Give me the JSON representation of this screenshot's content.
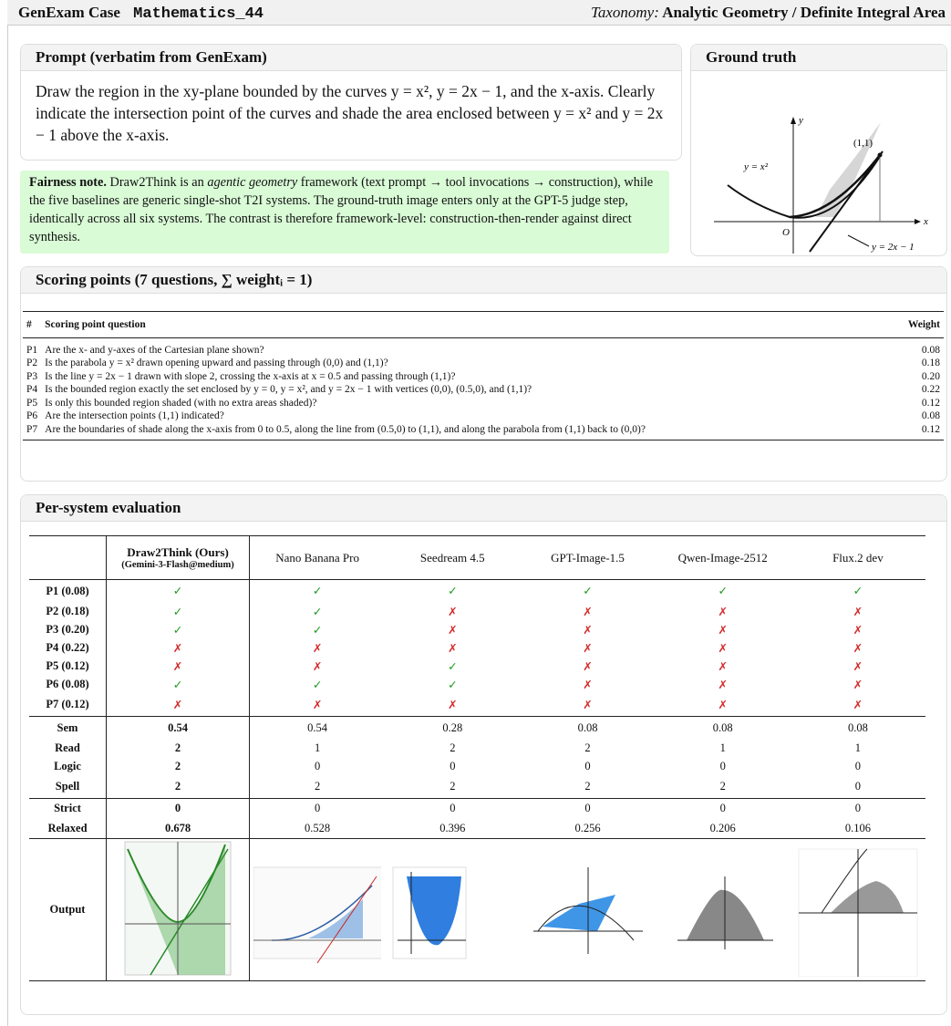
{
  "header": {
    "case_label": "GenExam Case",
    "case_id": "Mathematics_44",
    "taxonomy_label": "Taxonomy:",
    "taxonomy": "Analytic Geometry / Definite Integral Area"
  },
  "prompt": {
    "title": "Prompt (verbatim from GenExam)",
    "text": "Draw the region in the xy-plane bounded by the curves y = x², y = 2x − 1, and the x-axis. Clearly indicate the intersection point of the curves and shade the area enclosed between y = x² and y = 2x − 1 above the x-axis."
  },
  "fairness": {
    "label": "Fairness note.",
    "text_before": " Draw2Think is an ",
    "emphasis": "agentic geometry",
    "text_after": " framework (text prompt → tool invocations → construction), while the five baselines are generic single-shot T2I systems. The ground-truth image enters only at the GPT-5 judge step, identically across all six systems. The contrast is therefore framework-level: construction-then-render against direct synthesis."
  },
  "ground_truth": {
    "title": "Ground truth",
    "labels": {
      "y_axis": "y",
      "x_axis": "x",
      "origin": "O",
      "point": "(1,1)",
      "parabola": "y = x²",
      "line": "y = 2x − 1"
    }
  },
  "scoring": {
    "title": "Scoring points (7 questions, ∑ weightᵢ = 1)",
    "columns": [
      "#",
      "Scoring point question",
      "Weight"
    ],
    "rows": [
      [
        "P1",
        "Are the x- and y-axes of the Cartesian plane shown?",
        "0.08"
      ],
      [
        "P2",
        "Is the parabola y = x² drawn opening upward and passing through (0,0) and (1,1)?",
        "0.18"
      ],
      [
        "P3",
        "Is the line y = 2x − 1 drawn with slope 2, crossing the x-axis at x = 0.5 and passing through (1,1)?",
        "0.20"
      ],
      [
        "P4",
        "Is the bounded region exactly the set enclosed by y = 0, y = x², and y = 2x − 1 with vertices (0,0), (0.5,0), and (1,1)?",
        "0.22"
      ],
      [
        "P5",
        "Is only this bounded region shaded (with no extra areas shaded)?",
        "0.12"
      ],
      [
        "P6",
        "Are the intersection points (1,1) indicated?",
        "0.08"
      ],
      [
        "P7",
        "Are the boundaries of shade along the x-axis from 0 to 0.5, along the line from (0.5,0) to (1,1), and along the parabola from (1,1) back to (0,0)?",
        "0.12"
      ]
    ]
  },
  "evaluation": {
    "title": "Per-system evaluation",
    "systems": [
      {
        "name": "Draw2Think (Ours)",
        "note": "(Gemini-3-Flash@medium)"
      },
      {
        "name": "Nano Banana Pro"
      },
      {
        "name": "Seedream 4.5"
      },
      {
        "name": "GPT-Image-1.5"
      },
      {
        "name": "Qwen-Image-2512"
      },
      {
        "name": "Flux.2 dev"
      }
    ],
    "mark_colors": {
      "✓": "#1f9a1f",
      "✗": "#d42a2a"
    },
    "point_rows": [
      {
        "label": "P1 (0.08)",
        "values": [
          "✓",
          "✓",
          "✓",
          "✓",
          "✓",
          "✓"
        ]
      },
      {
        "label": "P2 (0.18)",
        "values": [
          "✓",
          "✓",
          "✗",
          "✗",
          "✗",
          "✗"
        ]
      },
      {
        "label": "P3 (0.20)",
        "values": [
          "✓",
          "✓",
          "✗",
          "✗",
          "✗",
          "✗"
        ]
      },
      {
        "label": "P4 (0.22)",
        "values": [
          "✗",
          "✗",
          "✗",
          "✗",
          "✗",
          "✗"
        ]
      },
      {
        "label": "P5 (0.12)",
        "values": [
          "✗",
          "✗",
          "✓",
          "✗",
          "✗",
          "✗"
        ]
      },
      {
        "label": "P6 (0.08)",
        "values": [
          "✓",
          "✓",
          "✓",
          "✗",
          "✗",
          "✗"
        ]
      },
      {
        "label": "P7 (0.12)",
        "values": [
          "✗",
          "✗",
          "✗",
          "✗",
          "✗",
          "✗"
        ]
      }
    ],
    "metric_rows": [
      {
        "label": "Sem",
        "values": [
          "0.54",
          "0.54",
          "0.28",
          "0.08",
          "0.08",
          "0.08"
        ]
      },
      {
        "label": "Read",
        "values": [
          "2",
          "1",
          "2",
          "2",
          "1",
          "1"
        ]
      },
      {
        "label": "Logic",
        "values": [
          "2",
          "0",
          "0",
          "0",
          "0",
          "0"
        ]
      },
      {
        "label": "Spell",
        "values": [
          "2",
          "2",
          "2",
          "2",
          "2",
          "0"
        ]
      }
    ],
    "score_rows": [
      {
        "label": "Strict",
        "values": [
          "0",
          "0",
          "0",
          "0",
          "0",
          "0"
        ]
      },
      {
        "label": "Relaxed",
        "values": [
          "0.678",
          "0.528",
          "0.396",
          "0.256",
          "0.206",
          "0.106"
        ]
      }
    ],
    "output_label": "Output"
  }
}
